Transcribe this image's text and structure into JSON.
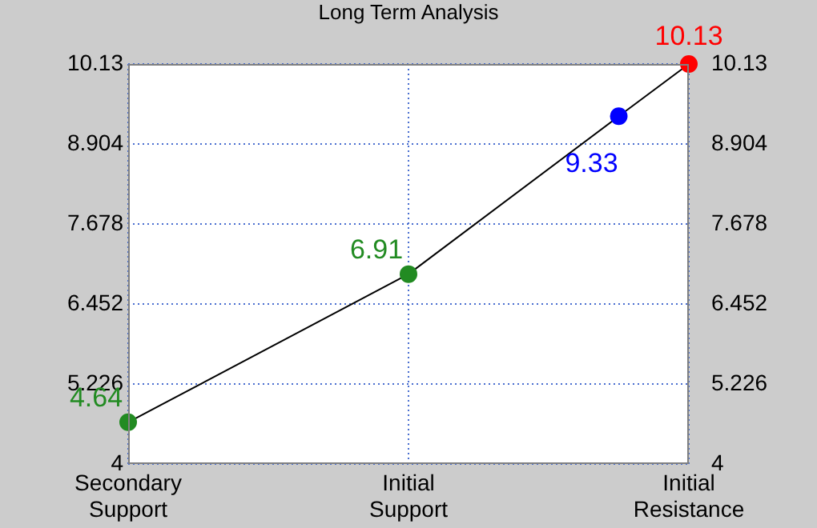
{
  "chart_data": {
    "type": "line",
    "title": "Long Term Analysis",
    "categories": [
      "Secondary Support",
      null,
      null,
      null,
      "Initial Support",
      null,
      null,
      null,
      "Initial Resistance"
    ],
    "ylim": [
      4,
      10.13
    ],
    "yticks": [
      4,
      5.226,
      6.452,
      7.678,
      8.904,
      10.13
    ],
    "y2lim": [
      4,
      10.13
    ],
    "y2ticks": [
      4,
      5.226,
      6.452,
      7.678,
      8.904,
      10.13
    ],
    "series": [
      {
        "color": "#000000",
        "values": [
          4.64,
          null,
          null,
          null,
          6.91,
          null,
          null,
          9.33,
          10.13
        ],
        "colors": [
          "#228b22",
          null,
          null,
          null,
          "#228b22",
          null,
          null,
          "#0000ff",
          "#ff0000"
        ]
      }
    ],
    "data_labels": true,
    "grid": true,
    "marker": "circle",
    "line_style": "solid"
  }
}
